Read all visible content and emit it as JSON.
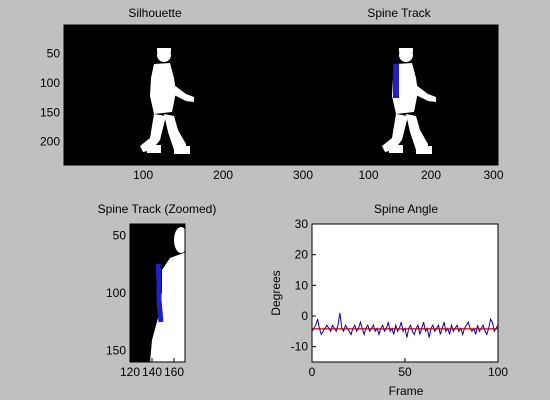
{
  "window": {
    "background": "#c0c0c0"
  },
  "panels": [
    {
      "title": "Silhouette"
    },
    {
      "title": "Spine Track"
    },
    {
      "title": "Spine Track (Zoomed)"
    },
    {
      "title": "Spine Angle"
    }
  ],
  "chart_data": [
    {
      "type": "heatmap",
      "title": "Silhouette",
      "xlim": [
        1,
        320
      ],
      "ylim": [
        240,
        1
      ],
      "xticks": [
        100,
        200,
        300
      ],
      "yticks": [
        50,
        100,
        150,
        200
      ],
      "colors": {
        "background": "#000000",
        "figure": "#ffffff"
      }
    },
    {
      "type": "heatmap",
      "title": "Spine Track",
      "xlim": [
        1,
        320
      ],
      "ylim": [
        240,
        1
      ],
      "xticks": [
        100,
        200,
        300
      ],
      "yticks": [
        50,
        100,
        150,
        200
      ],
      "colors": {
        "background": "#000000",
        "figure": "#ffffff",
        "track": "#1f1fd0"
      }
    },
    {
      "type": "heatmap",
      "title": "Spine Track (Zoomed)",
      "xlim": [
        120,
        170
      ],
      "ylim": [
        160,
        40
      ],
      "xticks": [
        120,
        140,
        160
      ],
      "yticks": [
        50,
        100,
        150
      ],
      "colors": {
        "background": "#000000",
        "figure": "#ffffff",
        "track": "#1f1fd0"
      }
    },
    {
      "type": "line",
      "title": "Spine Angle",
      "xlabel": "Frame",
      "ylabel": "Degrees",
      "xlim": [
        0,
        100
      ],
      "ylim": [
        -15,
        30
      ],
      "xticks": [
        0,
        50,
        100
      ],
      "yticks": [
        -10,
        0,
        10,
        20,
        30
      ],
      "grid": false,
      "series": [
        {
          "color": "#0000c8",
          "x": [
            0,
            1,
            2,
            3,
            4,
            5,
            6,
            7,
            8,
            9,
            10,
            11,
            12,
            13,
            14,
            15,
            16,
            17,
            18,
            19,
            20,
            21,
            22,
            23,
            24,
            25,
            26,
            27,
            28,
            29,
            30,
            31,
            32,
            33,
            34,
            35,
            36,
            37,
            38,
            39,
            40,
            41,
            42,
            43,
            44,
            45,
            46,
            47,
            48,
            49,
            50,
            51,
            52,
            53,
            54,
            55,
            56,
            57,
            58,
            59,
            60,
            61,
            62,
            63,
            64,
            65,
            66,
            67,
            68,
            69,
            70,
            71,
            72,
            73,
            74,
            75,
            76,
            77,
            78,
            79,
            80,
            81,
            82,
            83,
            84,
            85,
            86,
            87,
            88,
            89,
            90,
            91,
            92,
            93,
            94,
            95,
            96,
            97,
            98,
            99,
            100
          ],
          "values": [
            -5,
            -4,
            -3,
            -1,
            -4,
            -6,
            -5,
            -4,
            -3,
            -4,
            -5,
            -3,
            -4,
            -5,
            -3,
            1,
            -4,
            -5,
            -3,
            -4,
            -5,
            -6,
            -4,
            -3,
            -5,
            -4,
            -2,
            -4,
            -6,
            -4,
            -3,
            -5,
            -4,
            -3,
            -5,
            -4,
            -6,
            -4,
            -3,
            -5,
            -4,
            -2,
            -5,
            -4,
            -6,
            -3,
            -5,
            -4,
            -2,
            -5,
            -4,
            -7,
            -4,
            -3,
            -5,
            -6,
            -4,
            -3,
            -6,
            -4,
            -2,
            -5,
            -4,
            -7,
            -4,
            -3,
            -5,
            -4,
            -3,
            -6,
            -4,
            -2,
            -5,
            -4,
            -6,
            -3,
            -5,
            -4,
            -3,
            -5,
            -4,
            -6,
            -4,
            -3,
            -2,
            -4,
            -5,
            -4,
            -6,
            -3,
            -5,
            -4,
            -3,
            -5,
            -6,
            -4,
            -1,
            -2,
            -5,
            -4,
            -3
          ]
        },
        {
          "color": "#c80000",
          "x": [
            0,
            100
          ],
          "values": [
            -4.2,
            -4.2
          ]
        }
      ]
    }
  ]
}
